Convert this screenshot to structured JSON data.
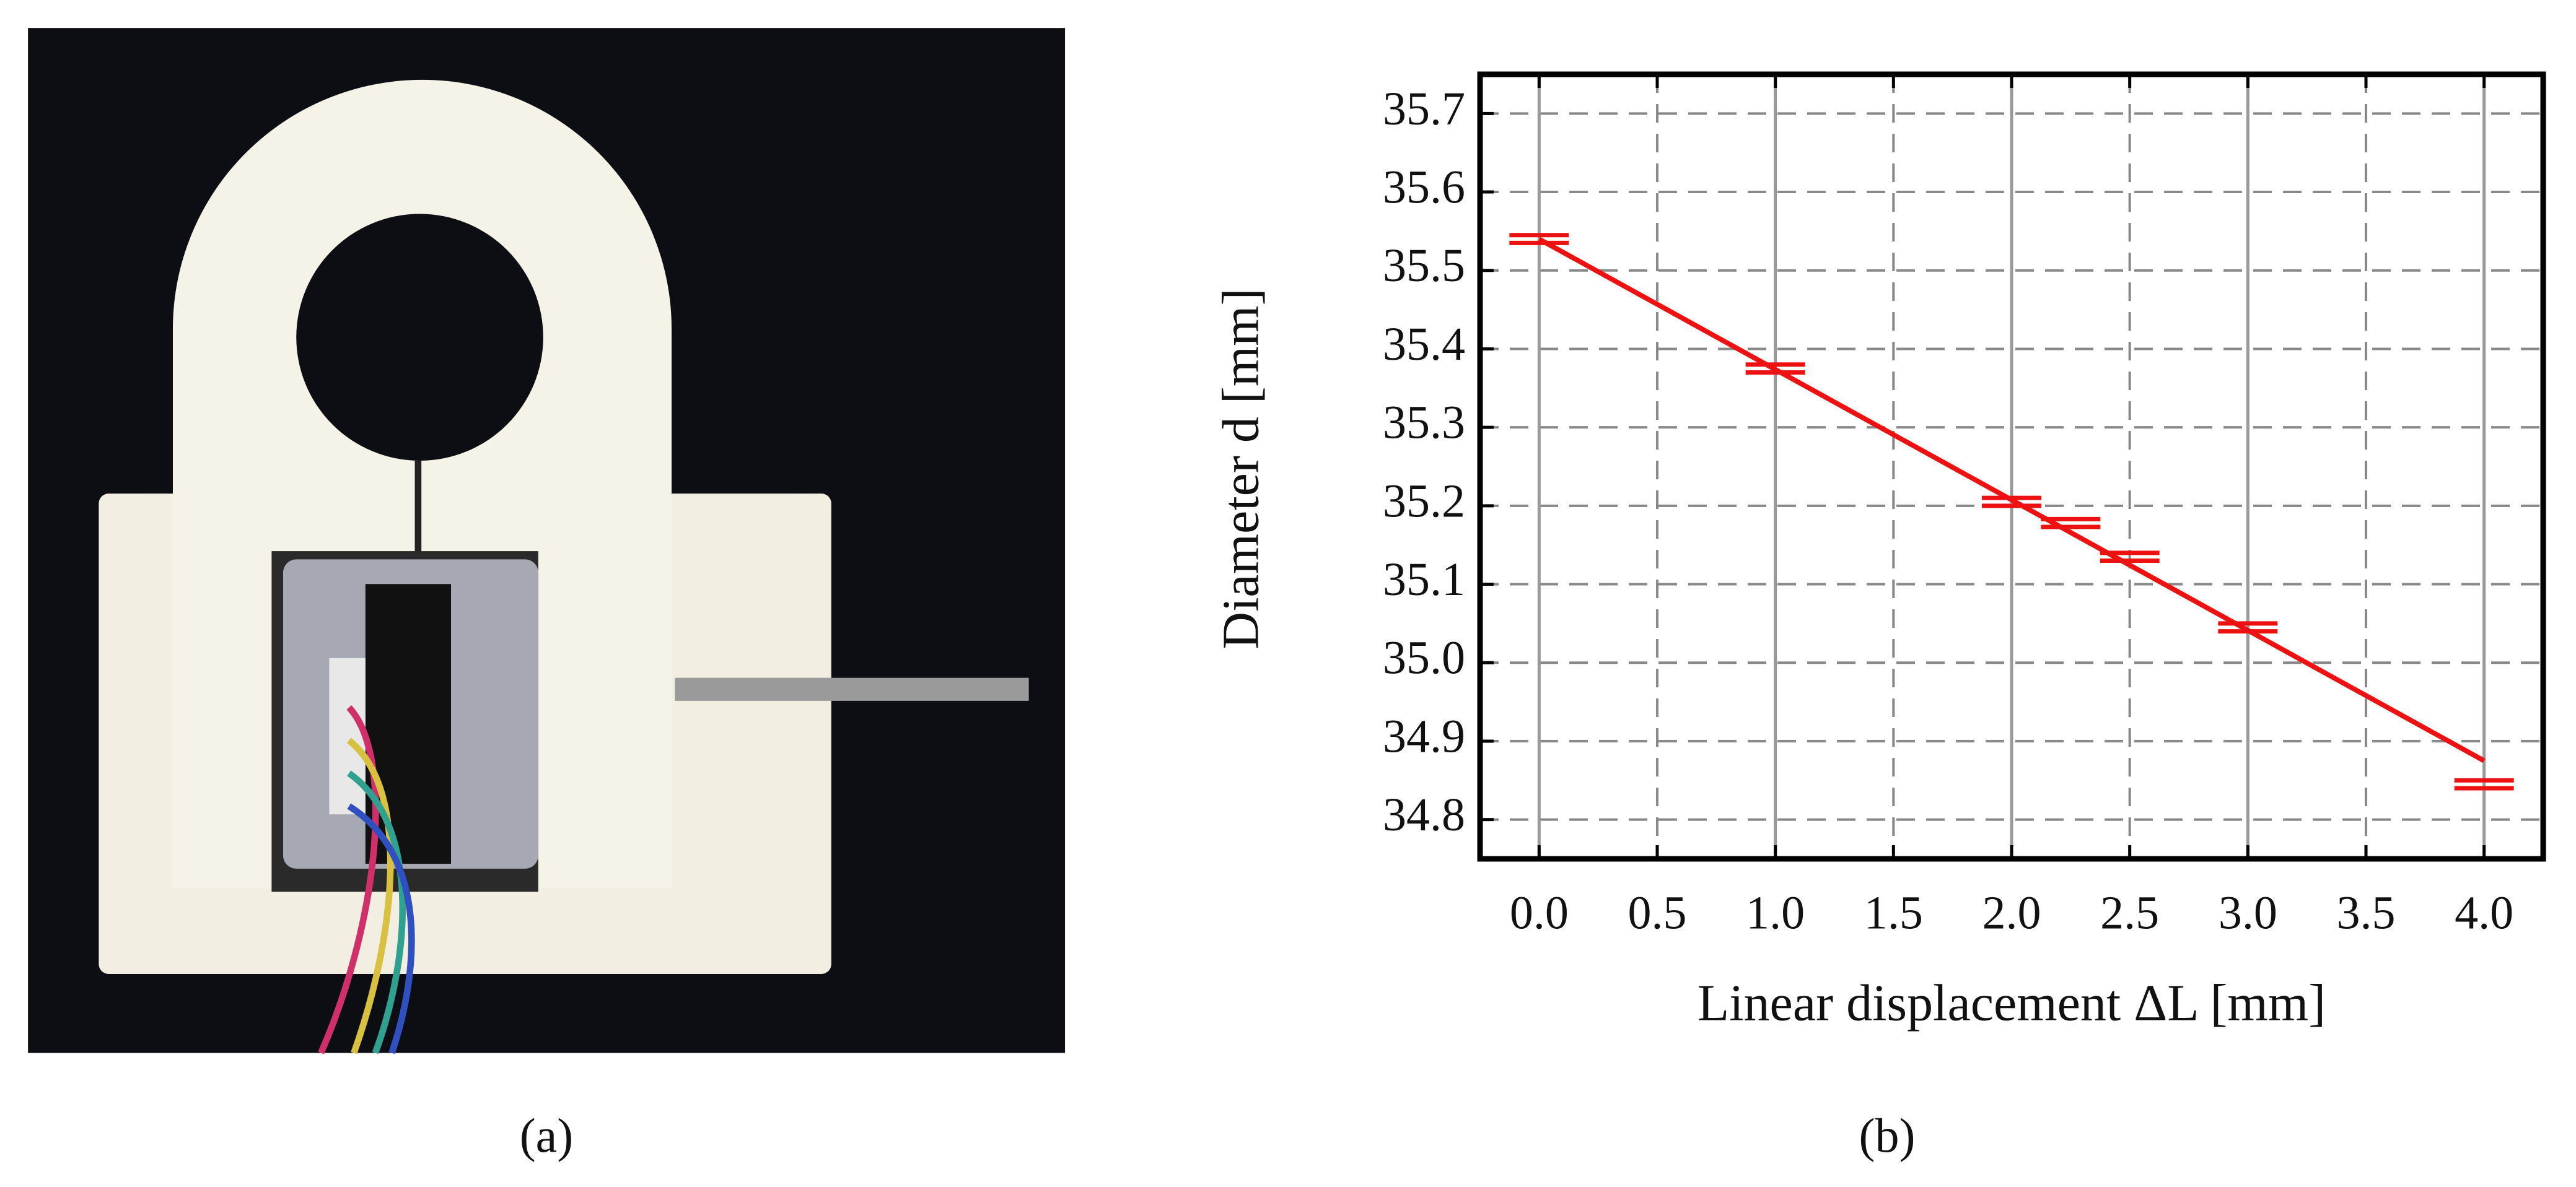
{
  "panel_labels": [
    "(a)",
    "(b)"
  ],
  "chart_data": {
    "type": "errorbar",
    "xlabel": "Linear displacement ΔL [mm]",
    "ylabel": "Diameter d [mm]",
    "x": [
      0.0,
      1.0,
      2.0,
      2.25,
      2.5,
      3.0,
      4.0
    ],
    "series": [
      {
        "color": "#ee1111",
        "values": [
          35.54,
          35.375,
          35.205,
          35.178,
          35.135,
          35.045,
          34.845
        ],
        "errors": [
          0.005,
          0.005,
          0.005,
          0.005,
          0.005,
          0.005,
          0.005
        ]
      }
    ],
    "fit_line": {
      "color": "#ee1111",
      "x": [
        0.0,
        4.0
      ],
      "values": [
        35.54,
        34.875
      ]
    },
    "xlim": [
      -0.25,
      4.25
    ],
    "ylim": [
      34.75,
      35.75
    ],
    "xticks": [
      {
        "value": 0,
        "label": "0.0"
      },
      0.5,
      {
        "value": 1,
        "label": "1.0"
      },
      1.5,
      {
        "value": 2,
        "label": "2.0"
      },
      2.5,
      {
        "value": 3,
        "label": "3.0"
      },
      3.5,
      {
        "value": 4,
        "label": "4.0"
      }
    ],
    "yticks": [
      34.8,
      34.9,
      {
        "value": 35,
        "label": "35.0"
      },
      35.1,
      35.2,
      35.3,
      35.4,
      35.5,
      35.6,
      35.7
    ],
    "grid": true
  }
}
